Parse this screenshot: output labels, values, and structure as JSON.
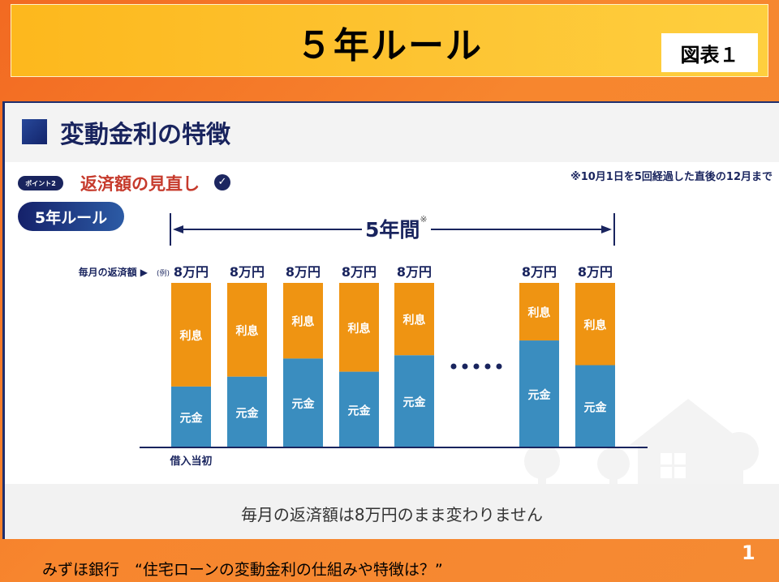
{
  "slide": {
    "title": "５年ルール",
    "figure_label": "図表１",
    "page_number": "1",
    "source": "みずほ銀行　“住宅ローンの変動金利の仕組みや特徴は？”"
  },
  "panel": {
    "heading": "変動金利の特徴",
    "point_badge": "ポイント2",
    "point_title": "返済額の見直し",
    "check_icon": "✓",
    "footnote": "※10月1日を5回経過した直後の12月まで",
    "rule_badge": "5年ルール",
    "period_label": "5年間",
    "period_note": "※",
    "bottom_message": "毎月の返済額は8万円のまま変わりません"
  },
  "colors": {
    "interest": "#ef9412",
    "principal": "#3a8dbf",
    "navy": "#19245e"
  },
  "chart_data": {
    "type": "bar",
    "stacked": true,
    "title": "",
    "row_label": "毎月の返済額 ▶",
    "example_marker": "(例)",
    "categories": [
      "借入当初",
      "",
      "",
      "",
      "",
      "",
      ""
    ],
    "gap_after_index": 4,
    "gap_marker": "•••••",
    "total_labels": [
      "8万円",
      "8万円",
      "8万円",
      "8万円",
      "8万円",
      "8万円",
      "8万円"
    ],
    "totals": [
      8,
      8,
      8,
      8,
      8,
      8,
      8
    ],
    "series": [
      {
        "name": "元金",
        "values": [
          2.96,
          3.44,
          4.32,
          3.68,
          4.48,
          5.2,
          4.0
        ]
      },
      {
        "name": "利息",
        "values": [
          5.04,
          4.56,
          3.68,
          4.32,
          3.52,
          2.8,
          4.0
        ]
      }
    ],
    "unit": "万円",
    "xlabel": "",
    "ylabel": "",
    "ylim": [
      0,
      8
    ],
    "grid": false,
    "legend": "none"
  }
}
